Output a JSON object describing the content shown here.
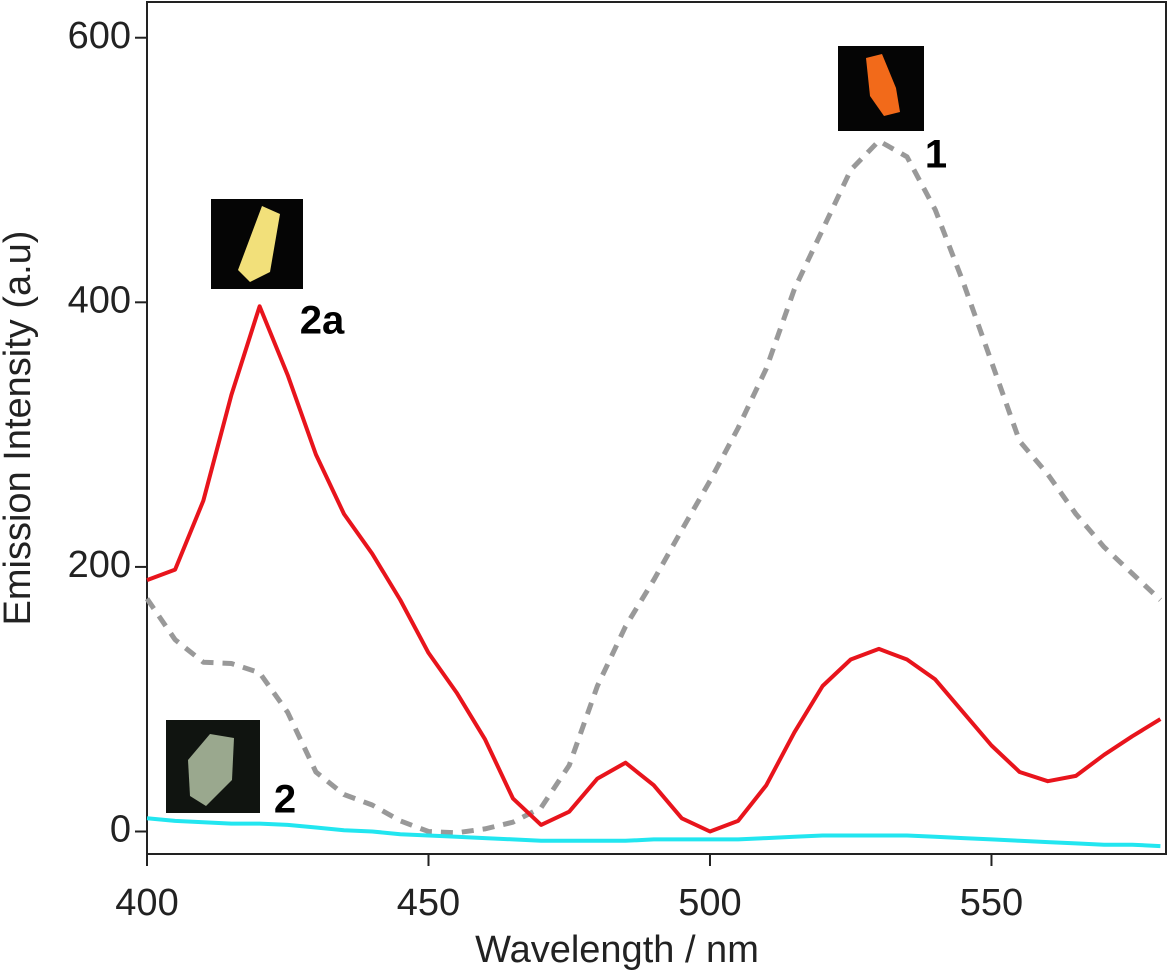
{
  "chart_data": {
    "type": "line",
    "x_label": "Wavelength / nm",
    "y_label": "Emission Intensity (a.u)",
    "x": [
      400,
      405,
      410,
      415,
      420,
      425,
      430,
      435,
      440,
      445,
      450,
      455,
      460,
      465,
      470,
      475,
      480,
      485,
      490,
      495,
      500,
      505,
      510,
      515,
      520,
      525,
      530,
      535,
      540,
      545,
      550,
      555,
      560,
      565,
      570,
      575,
      580
    ],
    "series": [
      {
        "name": "2a",
        "color": "#e8141c",
        "line_style": "solid",
        "values": [
          190,
          198,
          250,
          330,
          397,
          345,
          285,
          240,
          210,
          175,
          135,
          105,
          70,
          25,
          5,
          15,
          40,
          52,
          35,
          10,
          0,
          8,
          35,
          75,
          110,
          130,
          138,
          130,
          115,
          90,
          65,
          45,
          38,
          42,
          58,
          72,
          85
        ]
      },
      {
        "name": "1",
        "color": "#999999",
        "line_style": "dashed",
        "values": [
          176,
          145,
          128,
          127,
          120,
          90,
          45,
          28,
          20,
          8,
          0,
          -1,
          2,
          7,
          18,
          50,
          110,
          155,
          190,
          228,
          265,
          305,
          350,
          410,
          455,
          500,
          522,
          510,
          470,
          415,
          355,
          295,
          270,
          240,
          215,
          195,
          175
        ]
      },
      {
        "name": "2",
        "color": "#22e6f0",
        "line_style": "solid",
        "values": [
          10,
          8,
          7,
          6,
          6,
          5,
          3,
          1,
          0,
          -2,
          -3,
          -4,
          -5,
          -6,
          -7,
          -7,
          -7,
          -7,
          -6,
          -6,
          -6,
          -6,
          -5,
          -4,
          -3,
          -3,
          -3,
          -3,
          -4,
          -5,
          -6,
          -7,
          -8,
          -9,
          -10,
          -10,
          -11
        ]
      }
    ],
    "annotations": [
      "2a",
      "1",
      "2"
    ],
    "xlim": [
      400,
      581
    ],
    "ylim": [
      -17,
      627
    ],
    "xticks": [
      400,
      450,
      500,
      550
    ],
    "yticks": [
      0,
      200,
      400,
      600
    ]
  }
}
